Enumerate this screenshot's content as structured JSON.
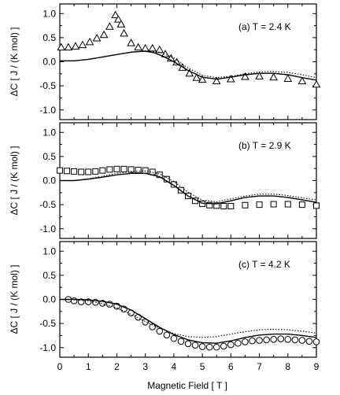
{
  "figure": {
    "xlabel": "Magnetic Field [ T ]"
  },
  "chart_data": [
    {
      "type": "scatter",
      "panel": "top",
      "annotation": "(a) T = 2.4 K",
      "ylabel": "ΔC [ J / (K mol) ]",
      "xlim": [
        0,
        9
      ],
      "ylim": [
        -1.2,
        1.2
      ],
      "x_ticks": [
        0,
        1,
        2,
        3,
        4,
        5,
        6,
        7,
        8,
        9
      ],
      "y_ticks": [
        -1.0,
        -0.5,
        0.0,
        0.5,
        1.0
      ],
      "y_tick_labels": [
        "-1.0",
        "-0.5",
        "0.0",
        "0.5",
        "1.0"
      ],
      "grid": false,
      "series": [
        {
          "marker": "triangle",
          "points": [
            [
              0.05,
              0.3
            ],
            [
              0.3,
              0.3
            ],
            [
              0.55,
              0.32
            ],
            [
              0.8,
              0.35
            ],
            [
              1.05,
              0.41
            ],
            [
              1.3,
              0.49
            ],
            [
              1.55,
              0.56
            ],
            [
              1.75,
              0.73
            ],
            [
              1.95,
              0.97
            ],
            [
              2.05,
              0.88
            ],
            [
              2.15,
              0.78
            ],
            [
              2.25,
              0.59
            ],
            [
              2.5,
              0.39
            ],
            [
              2.75,
              0.3
            ],
            [
              3.0,
              0.28
            ],
            [
              3.25,
              0.28
            ],
            [
              3.5,
              0.25
            ],
            [
              3.7,
              0.16
            ],
            [
              3.9,
              0.07
            ],
            [
              4.1,
              -0.01
            ],
            [
              4.3,
              -0.12
            ],
            [
              4.55,
              -0.24
            ],
            [
              4.8,
              -0.33
            ],
            [
              5.0,
              -0.37
            ],
            [
              5.5,
              -0.4
            ],
            [
              6.0,
              -0.36
            ],
            [
              6.5,
              -0.31
            ],
            [
              7.0,
              -0.3
            ],
            [
              7.5,
              -0.32
            ],
            [
              8.0,
              -0.35
            ],
            [
              8.5,
              -0.4
            ],
            [
              9.0,
              -0.47
            ]
          ]
        },
        {
          "line": "solid",
          "points": [
            [
              0,
              0.02
            ],
            [
              0.5,
              0.02
            ],
            [
              1.0,
              0.05
            ],
            [
              1.5,
              0.1
            ],
            [
              2.0,
              0.15
            ],
            [
              2.5,
              0.2
            ],
            [
              3.0,
              0.22
            ],
            [
              3.3,
              0.19
            ],
            [
              3.6,
              0.12
            ],
            [
              4.0,
              0.0
            ],
            [
              4.5,
              -0.18
            ],
            [
              5.0,
              -0.32
            ],
            [
              5.5,
              -0.36
            ],
            [
              6.0,
              -0.32
            ],
            [
              6.5,
              -0.27
            ],
            [
              7.0,
              -0.24
            ],
            [
              7.5,
              -0.24
            ],
            [
              8.0,
              -0.27
            ],
            [
              8.5,
              -0.33
            ],
            [
              9.0,
              -0.38
            ]
          ]
        },
        {
          "line": "dotted",
          "points": [
            [
              0,
              0.02
            ],
            [
              0.5,
              0.02
            ],
            [
              1.0,
              0.05
            ],
            [
              1.5,
              0.1
            ],
            [
              2.0,
              0.15
            ],
            [
              2.5,
              0.2
            ],
            [
              3.0,
              0.22
            ],
            [
              3.5,
              0.2
            ],
            [
              4.0,
              0.08
            ],
            [
              4.5,
              -0.13
            ],
            [
              5.0,
              -0.28
            ],
            [
              5.5,
              -0.33
            ],
            [
              6.0,
              -0.3
            ],
            [
              6.5,
              -0.25
            ],
            [
              7.0,
              -0.21
            ],
            [
              7.5,
              -0.2
            ],
            [
              8.0,
              -0.22
            ],
            [
              8.5,
              -0.27
            ],
            [
              9.0,
              -0.33
            ]
          ]
        }
      ]
    },
    {
      "type": "scatter",
      "panel": "middle",
      "annotation": "(b) T = 2.9 K",
      "ylabel": "ΔC [ J / (K mol) ]",
      "xlim": [
        0,
        9
      ],
      "ylim": [
        -1.2,
        1.2
      ],
      "x_ticks": [
        0,
        1,
        2,
        3,
        4,
        5,
        6,
        7,
        8,
        9
      ],
      "y_ticks": [
        -1.0,
        -0.5,
        0.0,
        0.5,
        1.0
      ],
      "y_tick_labels": [
        "-1.0",
        "-0.5",
        "0.0",
        "0.5",
        "1.0"
      ],
      "grid": false,
      "series": [
        {
          "marker": "square",
          "points": [
            [
              0.0,
              0.21
            ],
            [
              0.25,
              0.2
            ],
            [
              0.5,
              0.19
            ],
            [
              0.75,
              0.18
            ],
            [
              1.0,
              0.18
            ],
            [
              1.25,
              0.19
            ],
            [
              1.5,
              0.21
            ],
            [
              1.75,
              0.23
            ],
            [
              2.0,
              0.24
            ],
            [
              2.25,
              0.24
            ],
            [
              2.5,
              0.23
            ],
            [
              2.75,
              0.22
            ],
            [
              3.0,
              0.21
            ],
            [
              3.25,
              0.18
            ],
            [
              3.5,
              0.12
            ],
            [
              3.75,
              0.03
            ],
            [
              4.0,
              -0.08
            ],
            [
              4.25,
              -0.2
            ],
            [
              4.5,
              -0.32
            ],
            [
              4.75,
              -0.42
            ],
            [
              5.0,
              -0.48
            ],
            [
              5.25,
              -0.51
            ],
            [
              5.5,
              -0.52
            ],
            [
              5.75,
              -0.53
            ],
            [
              6.0,
              -0.53
            ],
            [
              6.5,
              -0.51
            ],
            [
              7.0,
              -0.5
            ],
            [
              7.5,
              -0.49
            ],
            [
              8.0,
              -0.49
            ],
            [
              8.5,
              -0.5
            ],
            [
              9.0,
              -0.52
            ]
          ]
        },
        {
          "line": "solid",
          "points": [
            [
              0,
              0.0
            ],
            [
              0.5,
              0.0
            ],
            [
              1.0,
              0.03
            ],
            [
              1.5,
              0.07
            ],
            [
              2.0,
              0.12
            ],
            [
              2.5,
              0.15
            ],
            [
              3.0,
              0.15
            ],
            [
              3.5,
              0.08
            ],
            [
              4.0,
              -0.1
            ],
            [
              4.5,
              -0.32
            ],
            [
              5.0,
              -0.47
            ],
            [
              5.5,
              -0.48
            ],
            [
              6.0,
              -0.42
            ],
            [
              6.5,
              -0.35
            ],
            [
              7.0,
              -0.32
            ],
            [
              7.5,
              -0.32
            ],
            [
              8.0,
              -0.35
            ],
            [
              8.5,
              -0.4
            ],
            [
              9.0,
              -0.45
            ]
          ]
        },
        {
          "line": "dotted",
          "points": [
            [
              0,
              0.0
            ],
            [
              0.5,
              0.0
            ],
            [
              1.0,
              0.04
            ],
            [
              1.5,
              0.09
            ],
            [
              2.0,
              0.15
            ],
            [
              2.5,
              0.19
            ],
            [
              3.0,
              0.2
            ],
            [
              3.5,
              0.14
            ],
            [
              4.0,
              -0.02
            ],
            [
              4.5,
              -0.24
            ],
            [
              5.0,
              -0.41
            ],
            [
              5.5,
              -0.44
            ],
            [
              6.0,
              -0.38
            ],
            [
              6.5,
              -0.32
            ],
            [
              7.0,
              -0.28
            ],
            [
              7.5,
              -0.28
            ],
            [
              8.0,
              -0.31
            ],
            [
              8.5,
              -0.36
            ],
            [
              9.0,
              -0.4
            ]
          ]
        }
      ]
    },
    {
      "type": "scatter",
      "panel": "bottom",
      "annotation": "(c) T = 4.2 K",
      "ylabel": "ΔC [ J / (K mol) ]",
      "xlim": [
        0,
        9
      ],
      "ylim": [
        -1.2,
        1.2
      ],
      "x_ticks": [
        0,
        1,
        2,
        3,
        4,
        5,
        6,
        7,
        8,
        9
      ],
      "x_tick_labels": [
        "0",
        "1",
        "2",
        "3",
        "4",
        "5",
        "6",
        "7",
        "8",
        "9"
      ],
      "y_ticks": [
        -1.0,
        -0.5,
        0.0,
        0.5,
        1.0
      ],
      "y_tick_labels": [
        "-1.0",
        "-0.5",
        "0.0",
        "0.5",
        "1.0"
      ],
      "grid": false,
      "series": [
        {
          "marker": "circle",
          "points": [
            [
              0.3,
              0.0
            ],
            [
              0.5,
              -0.03
            ],
            [
              0.75,
              -0.05
            ],
            [
              1.0,
              -0.05
            ],
            [
              1.25,
              -0.06
            ],
            [
              1.5,
              -0.08
            ],
            [
              1.75,
              -0.1
            ],
            [
              2.0,
              -0.14
            ],
            [
              2.25,
              -0.2
            ],
            [
              2.5,
              -0.28
            ],
            [
              2.75,
              -0.37
            ],
            [
              3.0,
              -0.47
            ],
            [
              3.25,
              -0.57
            ],
            [
              3.5,
              -0.66
            ],
            [
              3.75,
              -0.74
            ],
            [
              4.0,
              -0.81
            ],
            [
              4.25,
              -0.87
            ],
            [
              4.5,
              -0.92
            ],
            [
              4.75,
              -0.95
            ],
            [
              5.0,
              -0.98
            ],
            [
              5.25,
              -0.99
            ],
            [
              5.5,
              -0.99
            ],
            [
              5.75,
              -0.97
            ],
            [
              6.0,
              -0.94
            ],
            [
              6.25,
              -0.91
            ],
            [
              6.5,
              -0.88
            ],
            [
              6.75,
              -0.86
            ],
            [
              7.0,
              -0.85
            ],
            [
              7.25,
              -0.84
            ],
            [
              7.5,
              -0.83
            ],
            [
              7.75,
              -0.82
            ],
            [
              8.0,
              -0.83
            ],
            [
              8.25,
              -0.84
            ],
            [
              8.5,
              -0.85
            ],
            [
              8.75,
              -0.87
            ],
            [
              9.0,
              -0.88
            ]
          ]
        },
        {
          "line": "solid",
          "points": [
            [
              0,
              0.0
            ],
            [
              0.5,
              0.0
            ],
            [
              1.0,
              -0.01
            ],
            [
              1.5,
              -0.04
            ],
            [
              2.0,
              -0.1
            ],
            [
              2.5,
              -0.22
            ],
            [
              3.0,
              -0.4
            ],
            [
              3.5,
              -0.58
            ],
            [
              4.0,
              -0.73
            ],
            [
              4.5,
              -0.84
            ],
            [
              5.0,
              -0.9
            ],
            [
              5.5,
              -0.91
            ],
            [
              6.0,
              -0.86
            ],
            [
              6.5,
              -0.79
            ],
            [
              7.0,
              -0.74
            ],
            [
              7.5,
              -0.72
            ],
            [
              8.0,
              -0.72
            ],
            [
              8.5,
              -0.75
            ],
            [
              9.0,
              -0.79
            ]
          ]
        },
        {
          "line": "dotted",
          "points": [
            [
              0,
              0.0
            ],
            [
              0.5,
              -0.01
            ],
            [
              1.0,
              -0.03
            ],
            [
              1.5,
              -0.09
            ],
            [
              2.0,
              -0.18
            ],
            [
              2.5,
              -0.31
            ],
            [
              3.0,
              -0.46
            ],
            [
              3.5,
              -0.6
            ],
            [
              4.0,
              -0.71
            ],
            [
              4.5,
              -0.77
            ],
            [
              5.0,
              -0.79
            ],
            [
              5.5,
              -0.77
            ],
            [
              6.0,
              -0.72
            ],
            [
              6.5,
              -0.67
            ],
            [
              7.0,
              -0.63
            ],
            [
              7.5,
              -0.62
            ],
            [
              8.0,
              -0.63
            ],
            [
              8.5,
              -0.66
            ],
            [
              9.0,
              -0.7
            ]
          ]
        }
      ]
    }
  ]
}
